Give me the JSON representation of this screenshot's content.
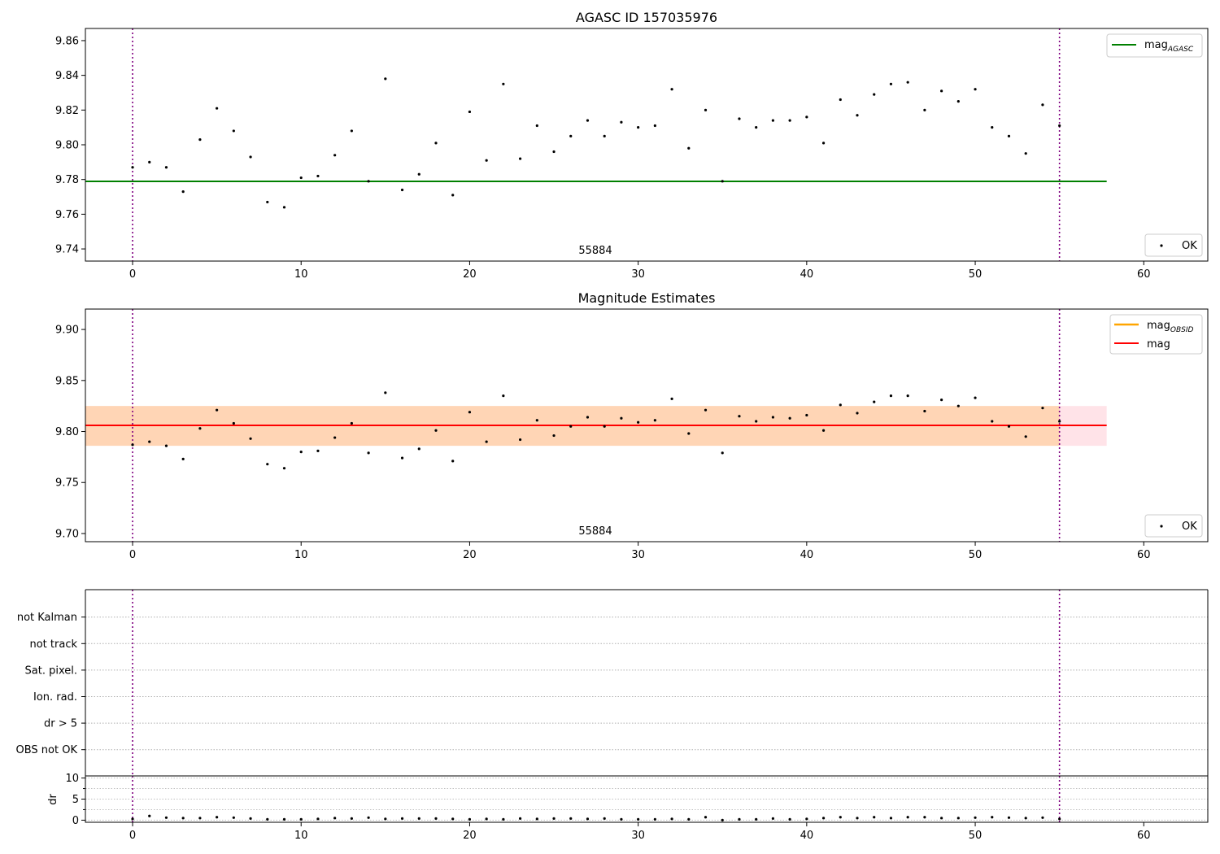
{
  "chart_data": [
    {
      "type": "scatter",
      "title": "AGASC ID 157035976",
      "xlim": [
        -2.8,
        63.8
      ],
      "ylim": [
        9.733,
        9.867
      ],
      "xticks": [
        0,
        10,
        20,
        30,
        40,
        50,
        60
      ],
      "yticks": [
        9.74,
        9.76,
        9.78,
        9.8,
        9.82,
        9.84,
        9.86
      ],
      "ytick_labels": [
        "9.74",
        "9.76",
        "9.78",
        "9.80",
        "9.82",
        "9.84",
        "9.86"
      ],
      "vlines": [
        0,
        55
      ],
      "annotation": "55884",
      "hline": {
        "label_main": "mag",
        "label_sub": "AGASC",
        "y": 9.7789,
        "xrange": [
          -2.8,
          57.8
        ],
        "color": "#008000"
      },
      "series": [
        {
          "name": "OK",
          "color": "#000000",
          "x": [
            0,
            1,
            2,
            3,
            4,
            5,
            6,
            7,
            8,
            9,
            10,
            11,
            12,
            13,
            14,
            15,
            16,
            17,
            18,
            19,
            20,
            21,
            22,
            23,
            24,
            25,
            26,
            27,
            28,
            29,
            30,
            31,
            32,
            33,
            34,
            35,
            36,
            37,
            38,
            39,
            40,
            41,
            42,
            43,
            44,
            45,
            46,
            47,
            48,
            49,
            50,
            51,
            52,
            53,
            54,
            55
          ],
          "y": [
            9.787,
            9.79,
            9.787,
            9.773,
            9.803,
            9.821,
            9.808,
            9.793,
            9.767,
            9.764,
            9.781,
            9.782,
            9.794,
            9.808,
            9.779,
            9.838,
            9.774,
            9.783,
            9.801,
            9.771,
            9.819,
            9.791,
            9.835,
            9.792,
            9.811,
            9.796,
            9.805,
            9.814,
            9.805,
            9.813,
            9.81,
            9.811,
            9.832,
            9.798,
            9.82,
            9.779,
            9.815,
            9.81,
            9.814,
            9.814,
            9.816,
            9.801,
            9.826,
            9.817,
            9.829,
            9.835,
            9.836,
            9.82,
            9.831,
            9.825,
            9.832,
            9.81,
            9.805,
            9.795,
            9.823,
            9.811
          ]
        }
      ],
      "legend": [
        {
          "label_main": "mag",
          "label_sub": "AGASC",
          "placement": "top-right"
        },
        {
          "label_main": "OK",
          "placement": "bottom-right"
        }
      ]
    },
    {
      "type": "scatter",
      "title": "Magnitude Estimates",
      "xlim": [
        -2.8,
        63.8
      ],
      "ylim": [
        9.692,
        9.92
      ],
      "xticks": [
        0,
        10,
        20,
        30,
        40,
        50,
        60
      ],
      "yticks": [
        9.7,
        9.75,
        9.8,
        9.85,
        9.9
      ],
      "ytick_labels": [
        "9.70",
        "9.75",
        "9.80",
        "9.85",
        "9.90"
      ],
      "vlines": [
        0,
        55
      ],
      "annotation": "55884",
      "band": {
        "y": [
          9.786,
          9.825
        ],
        "xrange": [
          -2.8,
          57.8
        ]
      },
      "hlines": [
        {
          "label_main": "mag",
          "label_sub": "OBSID",
          "y": 9.806,
          "color": "#ffa500"
        },
        {
          "label_main": "mag",
          "y": 9.806,
          "color": "#ff0000"
        }
      ],
      "series": [
        {
          "name": "OK",
          "color": "#000000",
          "x": [
            0,
            1,
            2,
            3,
            4,
            5,
            6,
            7,
            8,
            9,
            10,
            11,
            12,
            13,
            14,
            15,
            16,
            17,
            18,
            19,
            20,
            21,
            22,
            23,
            24,
            25,
            26,
            27,
            28,
            29,
            30,
            31,
            32,
            33,
            34,
            35,
            36,
            37,
            38,
            39,
            40,
            41,
            42,
            43,
            44,
            45,
            46,
            47,
            48,
            49,
            50,
            51,
            52,
            53,
            54,
            55
          ],
          "y": [
            9.787,
            9.79,
            9.786,
            9.773,
            9.803,
            9.821,
            9.808,
            9.793,
            9.768,
            9.764,
            9.78,
            9.781,
            9.794,
            9.808,
            9.779,
            9.838,
            9.774,
            9.783,
            9.801,
            9.771,
            9.819,
            9.79,
            9.835,
            9.792,
            9.811,
            9.796,
            9.805,
            9.814,
            9.805,
            9.813,
            9.809,
            9.811,
            9.832,
            9.798,
            9.821,
            9.779,
            9.815,
            9.81,
            9.814,
            9.813,
            9.816,
            9.801,
            9.826,
            9.818,
            9.829,
            9.835,
            9.835,
            9.82,
            9.831,
            9.825,
            9.833,
            9.81,
            9.805,
            9.795,
            9.823,
            9.81
          ]
        }
      ],
      "legend": [
        {
          "label_main": "mag",
          "label_sub": "OBSID",
          "placement": "top-right"
        },
        {
          "label_main": "mag",
          "placement": "top-right"
        },
        {
          "label_main": "OK",
          "placement": "bottom-right"
        }
      ]
    },
    {
      "type": "scatter",
      "title": "",
      "xlim": [
        -2.8,
        63.8
      ],
      "categories": [
        "not Kalman",
        "not track",
        "Sat. pixel.",
        "Ion. rad.",
        "dr > 5",
        "OBS not OK"
      ],
      "vlines": [
        0,
        55
      ],
      "grid": true
    },
    {
      "type": "scatter",
      "title": "",
      "ylabel": "dr",
      "xlim": [
        -2.8,
        63.8
      ],
      "ylim": [
        -0.5,
        10.5
      ],
      "xticks": [
        0,
        10,
        20,
        30,
        40,
        50,
        60
      ],
      "yticks": [
        0,
        5,
        10
      ],
      "ytick_labels": [
        "0",
        "5",
        "10"
      ],
      "vlines": [
        0,
        55
      ],
      "grid": true,
      "series": [
        {
          "color": "#000000",
          "x": [
            0,
            1,
            2,
            3,
            4,
            5,
            6,
            7,
            8,
            9,
            10,
            11,
            12,
            13,
            14,
            15,
            16,
            17,
            18,
            19,
            20,
            21,
            22,
            23,
            24,
            25,
            26,
            27,
            28,
            29,
            30,
            31,
            32,
            33,
            34,
            35,
            36,
            37,
            38,
            39,
            40,
            41,
            42,
            43,
            44,
            45,
            46,
            47,
            48,
            49,
            50,
            51,
            52,
            53,
            54,
            55
          ],
          "y": [
            0.3,
            1.0,
            0.6,
            0.5,
            0.5,
            0.7,
            0.6,
            0.4,
            0.2,
            0.2,
            0.2,
            0.3,
            0.5,
            0.4,
            0.6,
            0.3,
            0.4,
            0.4,
            0.4,
            0.3,
            0.2,
            0.3,
            0.2,
            0.4,
            0.3,
            0.4,
            0.4,
            0.3,
            0.4,
            0.2,
            0.2,
            0.2,
            0.3,
            0.2,
            0.7,
            0.0,
            0.2,
            0.2,
            0.4,
            0.2,
            0.3,
            0.5,
            0.7,
            0.5,
            0.7,
            0.5,
            0.7,
            0.7,
            0.5,
            0.5,
            0.6,
            0.7,
            0.6,
            0.5,
            0.6,
            0.3
          ]
        }
      ]
    }
  ]
}
